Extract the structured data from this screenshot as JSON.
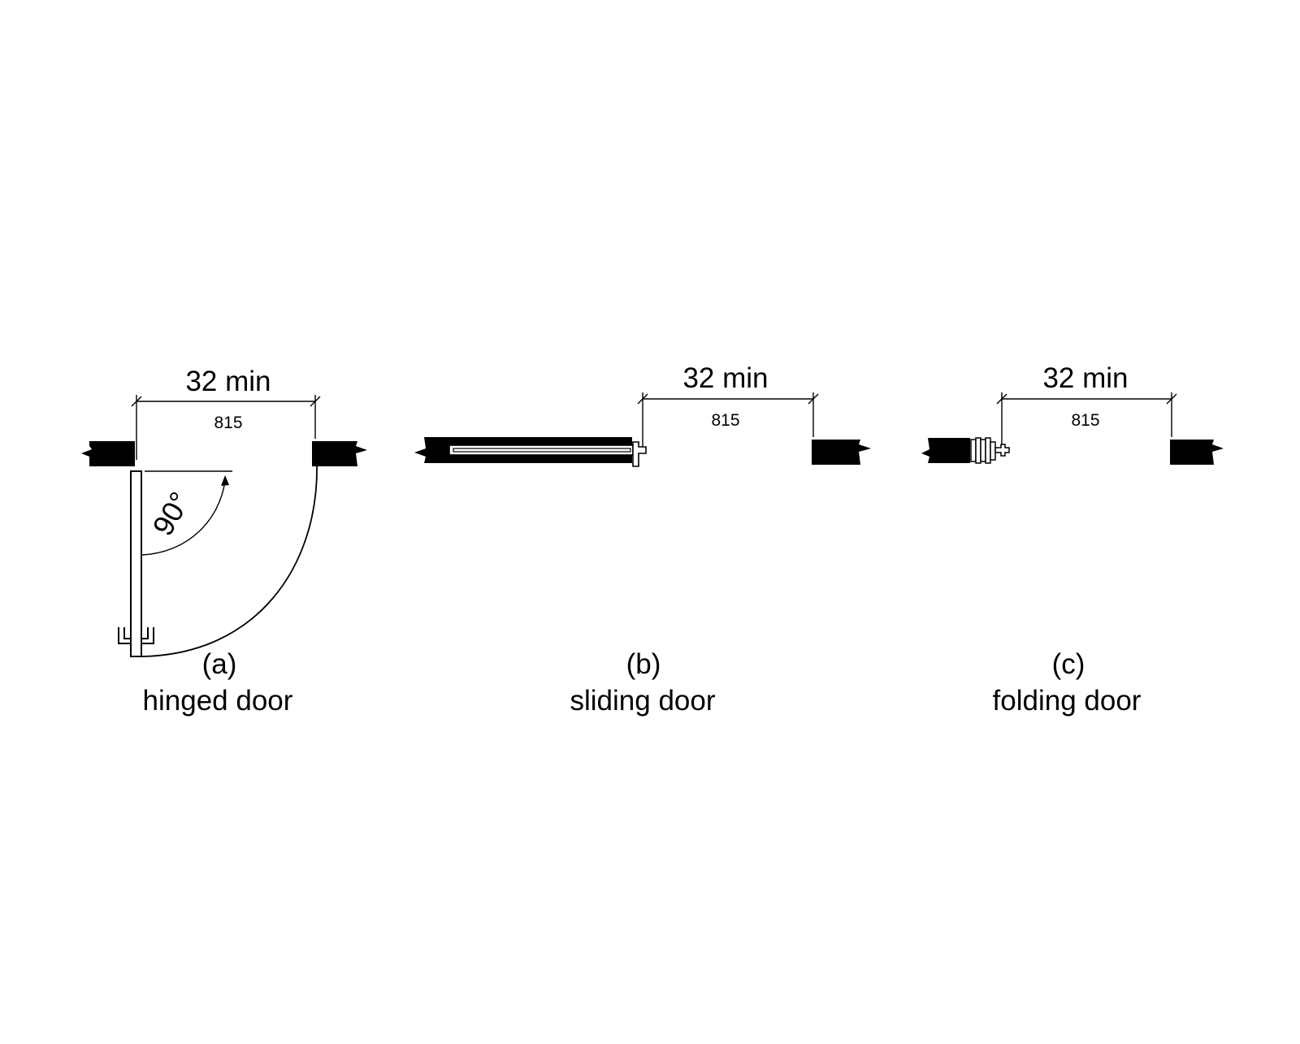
{
  "diagram": {
    "panels": [
      {
        "id": "a",
        "dimension": "32 min",
        "metric": "815",
        "letter": "(a)",
        "caption": "hinged door",
        "angle": "90°"
      },
      {
        "id": "b",
        "dimension": "32 min",
        "metric": "815",
        "letter": "(b)",
        "caption": "sliding door"
      },
      {
        "id": "c",
        "dimension": "32 min",
        "metric": "815",
        "letter": "(c)",
        "caption": "folding door"
      }
    ],
    "colors": {
      "ink": "#000000",
      "background": "#ffffff"
    }
  }
}
